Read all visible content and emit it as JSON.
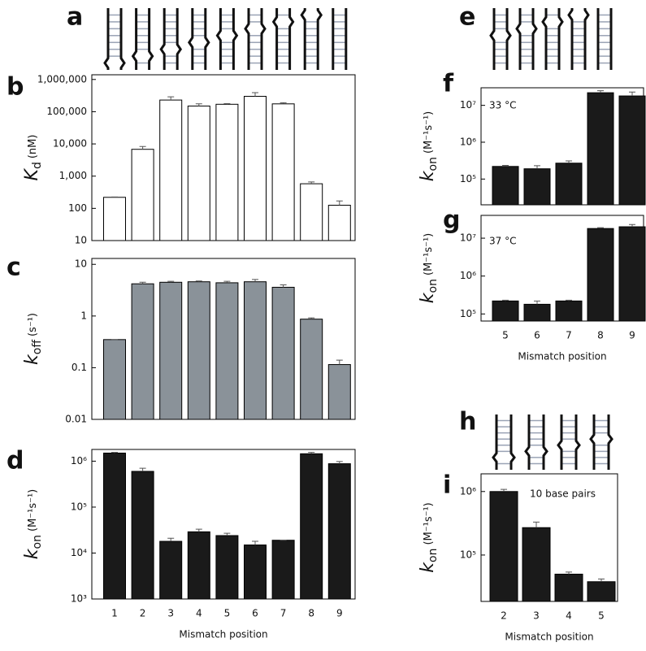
{
  "schematic_panels": [
    "a",
    "e",
    "h"
  ],
  "chart_data": [
    {
      "type": "bar",
      "panel": "b",
      "log_y": true,
      "color": "#ffffff",
      "ylabel": {
        "symbol": "K",
        "subscript": "d",
        "unit": "(nM)"
      },
      "values": [
        220,
        6800,
        230000,
        150000,
        170000,
        300000,
        175000,
        580,
        125
      ],
      "errors": [
        5,
        1500,
        60000,
        25000,
        8000,
        90000,
        15000,
        80,
        45
      ],
      "ylim": [
        10,
        1400000
      ],
      "yticks": [
        10,
        100,
        {
          "value": 1000,
          "label": "1,000"
        },
        {
          "value": 10000,
          "label": "10,000"
        },
        {
          "value": 100000,
          "label": "100,000"
        },
        {
          "value": 1000000,
          "label": "1,000,000"
        }
      ]
    },
    {
      "type": "bar",
      "panel": "c",
      "log_y": true,
      "color": "#8a9299",
      "ylabel": {
        "symbol": "k",
        "subscript": "off",
        "unit": "(s⁻¹)"
      },
      "values": [
        0.35,
        4.2,
        4.5,
        4.6,
        4.4,
        4.6,
        3.6,
        0.87,
        0.115
      ],
      "errors": [
        0,
        0.3,
        0.2,
        0.15,
        0.3,
        0.5,
        0.4,
        0.05,
        0.025
      ],
      "ylim": [
        0.01,
        13
      ],
      "yticks": [
        0.01,
        0.1,
        1,
        10
      ]
    },
    {
      "type": "bar",
      "panel": "d",
      "log_y": true,
      "color": "#1a1a1a",
      "ylabel": {
        "symbol": "k",
        "subscript": "on",
        "unit": "(M⁻¹s⁻¹)"
      },
      "xlabel": "Mismatch position",
      "categories": [
        "1",
        "2",
        "3",
        "4",
        "5",
        "6",
        "7",
        "8",
        "9"
      ],
      "values": [
        1500000,
        600000,
        18000,
        29000,
        24000,
        15000,
        19000,
        1450000,
        880000
      ],
      "errors": [
        50000,
        100000,
        3000,
        4000,
        3000,
        3000,
        0,
        100000,
        100000
      ],
      "ylim": [
        1000,
        1800000
      ],
      "yticks": [
        {
          "value": 1000,
          "label": "10³"
        },
        {
          "value": 10000,
          "label": "10⁴"
        },
        {
          "value": 100000,
          "label": "10⁵"
        },
        {
          "value": 1000000,
          "label": "10⁶"
        }
      ]
    },
    {
      "type": "bar",
      "panel": "f",
      "log_y": true,
      "color": "#1a1a1a",
      "ylabel": {
        "symbol": "k",
        "subscript": "on",
        "unit": "(M⁻¹s⁻¹)"
      },
      "annotation": "33 °C",
      "values": [
        220000,
        190000,
        270000,
        22000000,
        18000000
      ],
      "errors": [
        15000,
        40000,
        40000,
        3000000,
        5000000
      ],
      "ylim": [
        20000,
        30000000
      ],
      "yticks": [
        {
          "value": 100000,
          "label": "10⁵"
        },
        {
          "value": 1000000,
          "label": "10⁶"
        },
        {
          "value": 10000000,
          "label": "10⁷"
        }
      ]
    },
    {
      "type": "bar",
      "panel": "g",
      "log_y": true,
      "color": "#1a1a1a",
      "ylabel": {
        "symbol": "k",
        "subscript": "on",
        "unit": "(M⁻¹s⁻¹)"
      },
      "annotation": "37 °C",
      "xlabel": "Mismatch position",
      "categories": [
        "5",
        "6",
        "7",
        "8",
        "9"
      ],
      "values": [
        220000,
        180000,
        220000,
        18000000,
        20000000
      ],
      "errors": [
        10000,
        40000,
        10000,
        1000000,
        3000000
      ],
      "ylim": [
        65000,
        40000000
      ],
      "yticks": [
        {
          "value": 100000,
          "label": "10⁵"
        },
        {
          "value": 1000000,
          "label": "10⁶"
        },
        {
          "value": 10000000,
          "label": "10⁷"
        }
      ]
    },
    {
      "type": "bar",
      "panel": "i",
      "log_y": true,
      "color": "#1a1a1a",
      "ylabel": {
        "symbol": "k",
        "subscript": "on",
        "unit": "(M⁻¹s⁻¹)"
      },
      "annotation": "10 base pairs",
      "xlabel": "Mismatch position",
      "categories": [
        "2",
        "3",
        "4",
        "5"
      ],
      "values": [
        1000000,
        270000,
        50000,
        38000
      ],
      "errors": [
        80000,
        60000,
        4000,
        4000
      ],
      "ylim": [
        18600,
        1900000
      ],
      "yticks": [
        {
          "value": 100000,
          "label": "10⁵"
        },
        {
          "value": 1000000,
          "label": "10⁶"
        }
      ]
    }
  ]
}
